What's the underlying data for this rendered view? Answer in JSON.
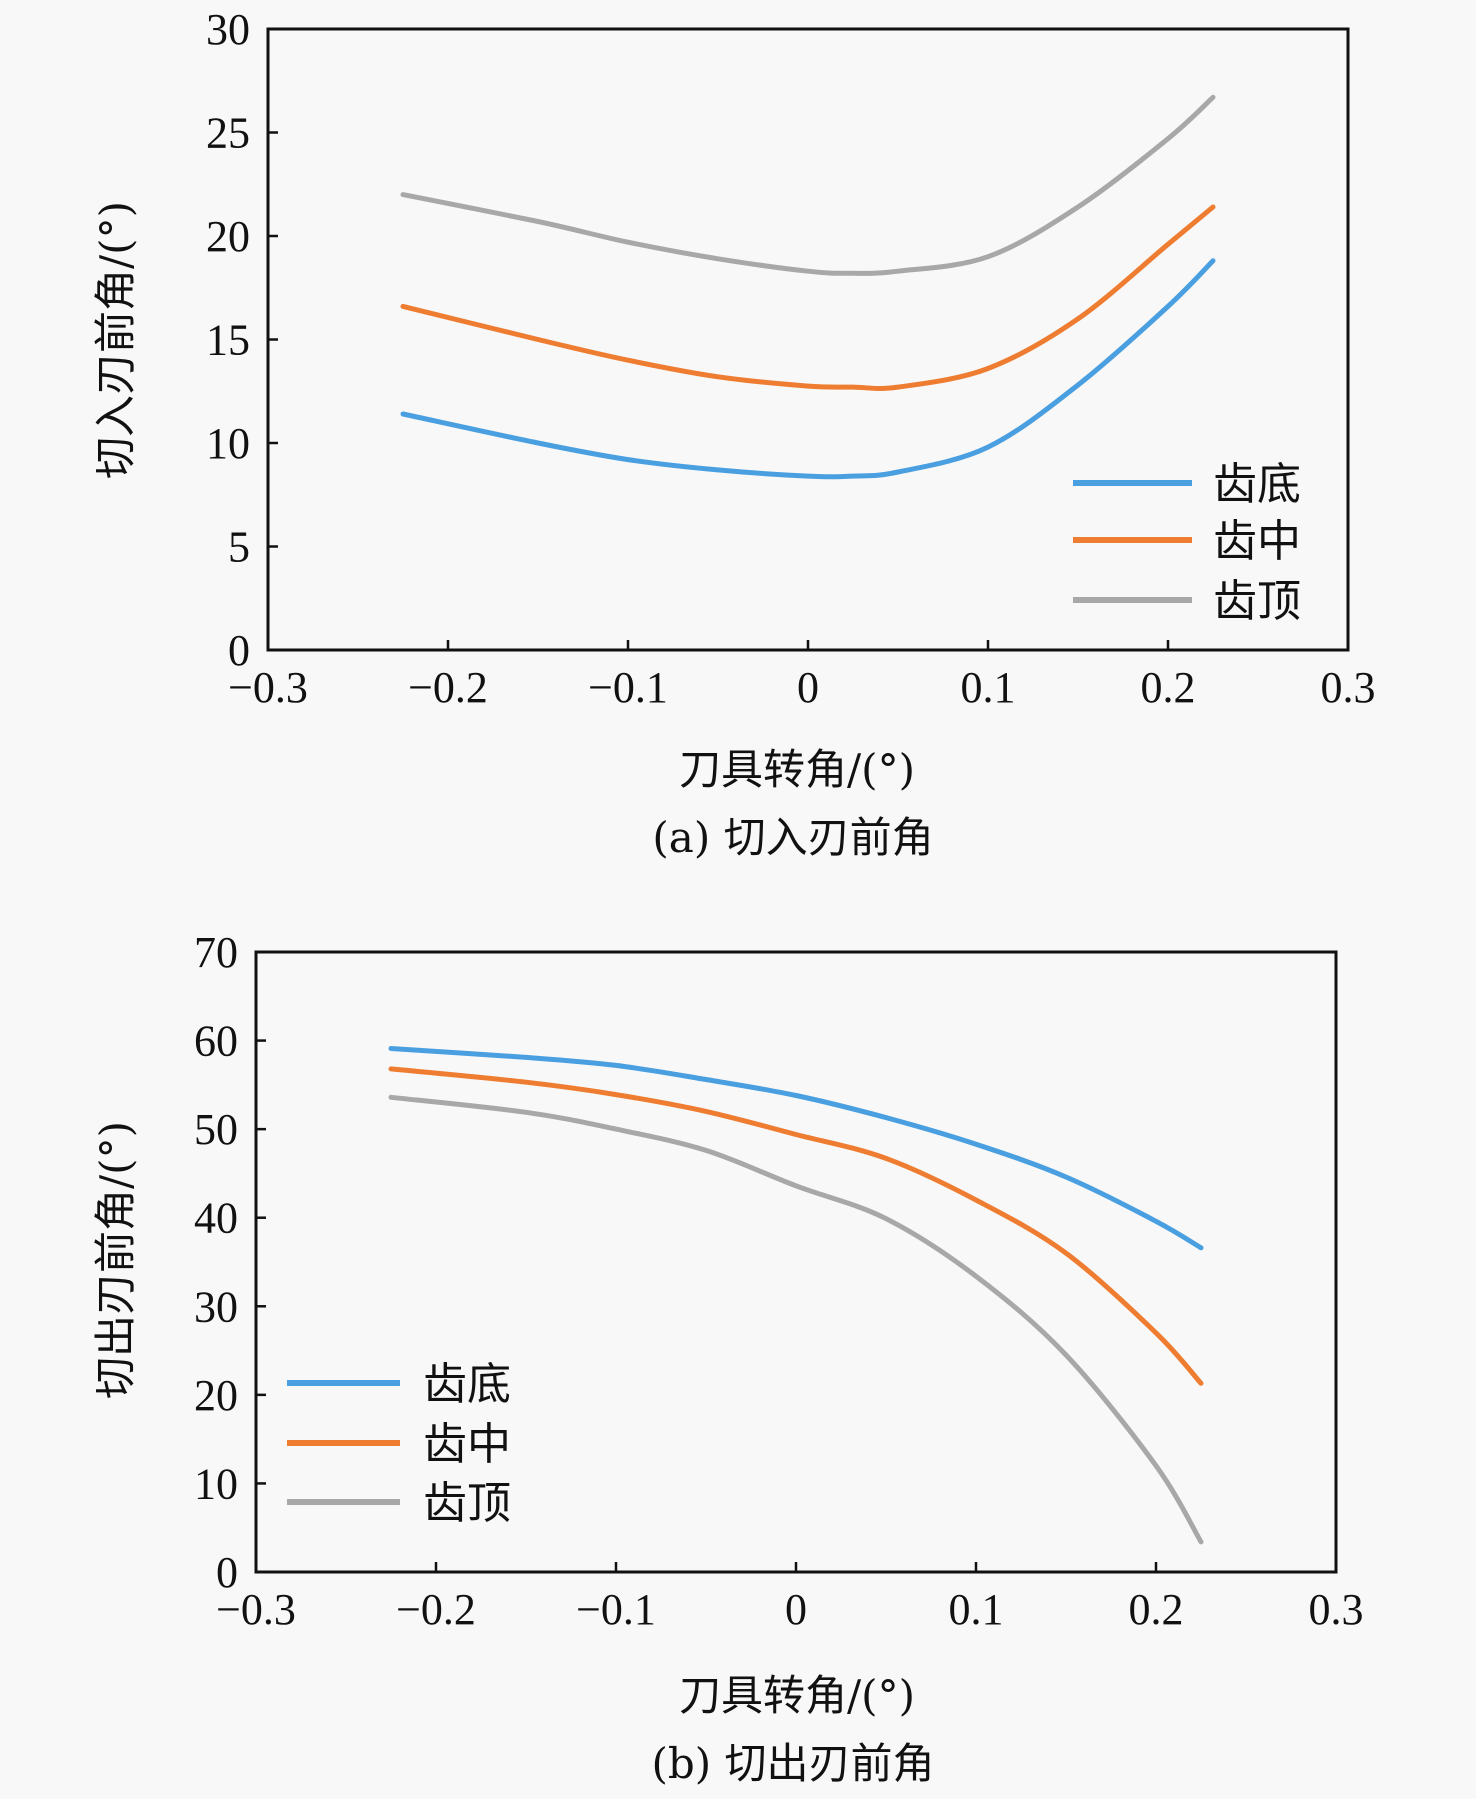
{
  "chart_data": [
    {
      "type": "line",
      "panel": "a",
      "caption": "(a) 切入刃前角",
      "xlabel": "刀具转角/(°)",
      "ylabel": "切入刃前角/(°)",
      "xlim": [
        -0.3,
        0.3
      ],
      "ylim": [
        0,
        30
      ],
      "xticks": [
        -0.3,
        -0.2,
        -0.1,
        0,
        0.1,
        0.2,
        0.3
      ],
      "xtick_labels": [
        "−0.3",
        "−0.2",
        "−0.1",
        "0",
        "0.1",
        "0.2",
        "0.3"
      ],
      "yticks": [
        0,
        5,
        10,
        15,
        20,
        25,
        30
      ],
      "ytick_labels": [
        "0",
        "5",
        "10",
        "15",
        "20",
        "25",
        "30"
      ],
      "legend_position": "bottom-right",
      "grid": false,
      "x": [
        -0.225,
        -0.15,
        -0.1,
        -0.05,
        0,
        0.025,
        0.05,
        0.1,
        0.15,
        0.2,
        0.225
      ],
      "series": [
        {
          "name": "齿底",
          "color": "#4a9fe0",
          "values": [
            11.4,
            10.0,
            9.2,
            8.7,
            8.4,
            8.4,
            8.6,
            9.8,
            12.8,
            16.6,
            18.8
          ]
        },
        {
          "name": "齿中",
          "color": "#ee7d31",
          "values": [
            16.6,
            15.0,
            14.0,
            13.2,
            12.75,
            12.7,
            12.7,
            13.6,
            16.0,
            19.6,
            21.4
          ]
        },
        {
          "name": "齿顶",
          "color": "#a8a8a8",
          "values": [
            22.0,
            20.7,
            19.7,
            18.9,
            18.3,
            18.2,
            18.3,
            19.0,
            21.4,
            24.7,
            26.7
          ]
        }
      ]
    },
    {
      "type": "line",
      "panel": "b",
      "caption": "(b) 切出刃前角",
      "xlabel": "刀具转角/(°)",
      "ylabel": "切出刃前角/(°)",
      "xlim": [
        -0.3,
        0.3
      ],
      "ylim": [
        0,
        70
      ],
      "xticks": [
        -0.3,
        -0.2,
        -0.1,
        0,
        0.1,
        0.2,
        0.3
      ],
      "xtick_labels": [
        "−0.3",
        "−0.2",
        "−0.1",
        "0",
        "0.1",
        "0.2",
        "0.3"
      ],
      "yticks": [
        0,
        10,
        20,
        30,
        40,
        50,
        60,
        70
      ],
      "ytick_labels": [
        "0",
        "10",
        "20",
        "30",
        "40",
        "50",
        "60",
        "70"
      ],
      "legend_position": "bottom-left",
      "grid": false,
      "x": [
        -0.225,
        -0.15,
        -0.1,
        -0.05,
        0,
        0.05,
        0.1,
        0.15,
        0.2,
        0.225
      ],
      "series": [
        {
          "name": "齿底",
          "color": "#4a9fe0",
          "values": [
            59.1,
            58.1,
            57.2,
            55.6,
            53.8,
            51.3,
            48.3,
            44.6,
            39.6,
            36.6
          ]
        },
        {
          "name": "齿中",
          "color": "#ee7d31",
          "values": [
            56.8,
            55.3,
            53.9,
            52.0,
            49.4,
            46.7,
            42.0,
            36.0,
            27.0,
            21.3
          ]
        },
        {
          "name": "齿顶",
          "color": "#a8a8a8",
          "values": [
            53.6,
            51.9,
            50.0,
            47.6,
            43.6,
            39.9,
            33.4,
            24.5,
            12.0,
            3.4
          ]
        }
      ]
    }
  ]
}
